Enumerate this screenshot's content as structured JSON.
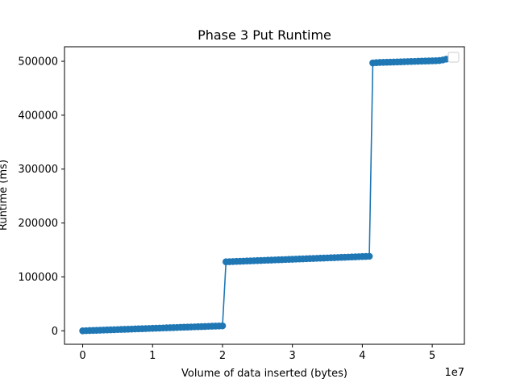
{
  "chart_data": {
    "type": "line",
    "title": "Phase 3 Put Runtime",
    "xlabel": "Volume of data inserted (bytes)",
    "ylabel": "Runtime (ms)",
    "x_offset_label": "1e7",
    "xlim": [
      -2600000,
      54600000
    ],
    "ylim": [
      -25000,
      527000
    ],
    "xticks": [
      0,
      10000000,
      20000000,
      30000000,
      40000000,
      50000000
    ],
    "xtick_labels": [
      "0",
      "1",
      "2",
      "3",
      "4",
      "5"
    ],
    "yticks": [
      0,
      100000,
      200000,
      300000,
      400000,
      500000
    ],
    "ytick_labels": [
      "0",
      "100000",
      "200000",
      "300000",
      "400000",
      "500000"
    ],
    "grid": false,
    "legend": "upper right (empty)",
    "color": "#1f77b4",
    "markers": "circle",
    "series": [
      {
        "x": [
          0,
          500000,
          1000000,
          1500000,
          2000000,
          2500000,
          3000000,
          3500000,
          4000000,
          4500000,
          5000000,
          5500000,
          6000000,
          6500000,
          7000000,
          7500000,
          8000000,
          8500000,
          9000000,
          9500000,
          10000000,
          10500000,
          11000000,
          11500000,
          12000000,
          12500000,
          13000000,
          13500000,
          14000000,
          14500000,
          15000000,
          15500000,
          16000000,
          16500000,
          17000000,
          17500000,
          18000000,
          18500000,
          19000000,
          19500000,
          20000000,
          20500000,
          21000000,
          21500000,
          22000000,
          22500000,
          23000000,
          23500000,
          24000000,
          24500000,
          25000000,
          25500000,
          26000000,
          26500000,
          27000000,
          27500000,
          28000000,
          28500000,
          29000000,
          29500000,
          30000000,
          30500000,
          31000000,
          31500000,
          32000000,
          32500000,
          33000000,
          33500000,
          34000000,
          34500000,
          35000000,
          35500000,
          36000000,
          36500000,
          37000000,
          37500000,
          38000000,
          38500000,
          39000000,
          39500000,
          40000000,
          40500000,
          41000000,
          41500000,
          42000000,
          42500000,
          43000000,
          43500000,
          44000000,
          44500000,
          45000000,
          45500000,
          46000000,
          46500000,
          47000000,
          47500000,
          48000000,
          48500000,
          49000000,
          49500000,
          50000000,
          50500000,
          51000000,
          51500000,
          52000000
        ],
        "y": [
          0,
          230,
          460,
          690,
          920,
          1150,
          1380,
          1610,
          1840,
          2070,
          2300,
          2530,
          2760,
          2990,
          3220,
          3450,
          3680,
          3910,
          4140,
          4370,
          4600,
          4830,
          5060,
          5290,
          5520,
          5750,
          5980,
          6210,
          6440,
          6670,
          6900,
          7130,
          7360,
          7590,
          7820,
          8050,
          8280,
          8510,
          8740,
          8970,
          9200,
          128000,
          128250,
          128500,
          128750,
          129000,
          129250,
          129500,
          129750,
          130000,
          130250,
          130500,
          130750,
          131000,
          131250,
          131500,
          131750,
          132000,
          132250,
          132500,
          132750,
          133000,
          133250,
          133500,
          133750,
          134000,
          134250,
          134500,
          134750,
          135000,
          135250,
          135500,
          135750,
          136000,
          136250,
          136500,
          136750,
          137000,
          137250,
          137500,
          137750,
          138000,
          138250,
          497000,
          497500,
          497900,
          498100,
          498300,
          498500,
          498700,
          498900,
          499100,
          499300,
          499500,
          499700,
          499900,
          500100,
          500300,
          500500,
          500700,
          500900,
          501100,
          501500,
          502500,
          504000
        ]
      }
    ]
  }
}
